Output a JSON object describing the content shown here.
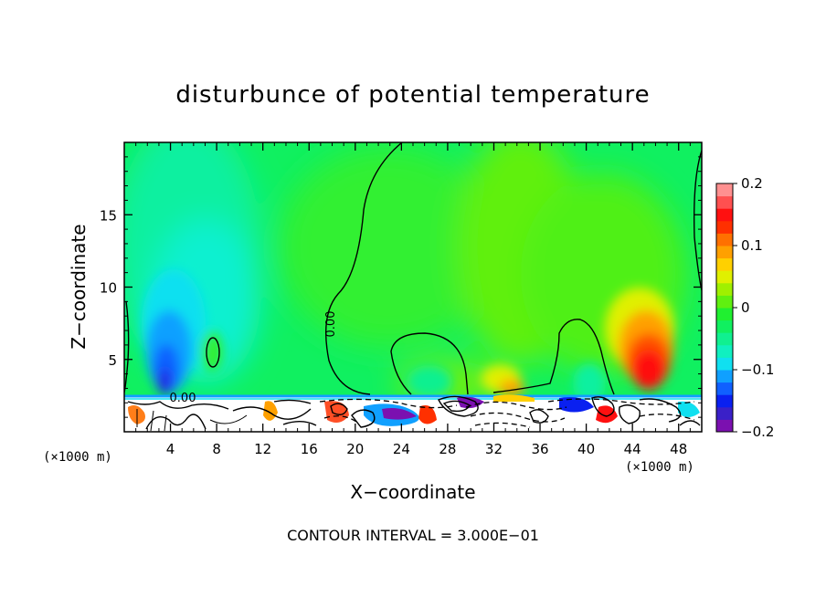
{
  "chart_data": {
    "type": "heatmap",
    "title": "disturbunce of potential temperature",
    "xlabel": "X−coordinate",
    "ylabel": "Z−coordinate",
    "x_unit_left": "(×1000 m)",
    "x_unit_right": "(×1000 m)",
    "footer": "CONTOUR INTERVAL = 3.000E−01",
    "xlim": [
      0,
      50
    ],
    "ylim": [
      0,
      20
    ],
    "x_ticks": [
      4,
      8,
      12,
      16,
      20,
      24,
      28,
      32,
      36,
      40,
      44,
      48
    ],
    "y_ticks": [
      5,
      10,
      15
    ],
    "colorbar": {
      "vmin": -0.2,
      "vmax": 0.2,
      "ticks": [
        -0.2,
        -0.1,
        0,
        0.1,
        0.2
      ],
      "tick_labels": [
        "−0.2",
        "−0.1",
        "0",
        "0.1",
        "0.2"
      ],
      "colors": [
        "#7b10b0",
        "#3a20c8",
        "#0a20f0",
        "#1060ff",
        "#10a0ff",
        "#10e0f0",
        "#10f0c0",
        "#10f090",
        "#10f060",
        "#20f030",
        "#60f010",
        "#a0f000",
        "#e0f000",
        "#ffd000",
        "#ffa000",
        "#ff7000",
        "#ff3000",
        "#ff1010",
        "#ff5050",
        "#ff9090"
      ]
    },
    "contour_labels": [
      {
        "text": "0.00",
        "x": 17.6,
        "y": 7.2,
        "rotate": -90
      },
      {
        "text": "0.00",
        "x": 6.2,
        "y": 2.3,
        "rotate": 0
      }
    ],
    "features": [
      {
        "x": 4.5,
        "z": 5.5,
        "value": -0.14
      },
      {
        "x": 4.5,
        "z": 3.0,
        "value": -0.2
      },
      {
        "x": 6.0,
        "z": 9.0,
        "value": -0.07
      },
      {
        "x": 6.0,
        "z": 15.0,
        "value": -0.03
      },
      {
        "x": 8.0,
        "z": 5.8,
        "value": 0.0
      },
      {
        "x": 38.0,
        "z": 10.0,
        "value": 0.03
      },
      {
        "x": 45.0,
        "z": 5.0,
        "value": 0.15
      },
      {
        "x": 46.0,
        "z": 11.0,
        "value": 0.06
      }
    ]
  }
}
